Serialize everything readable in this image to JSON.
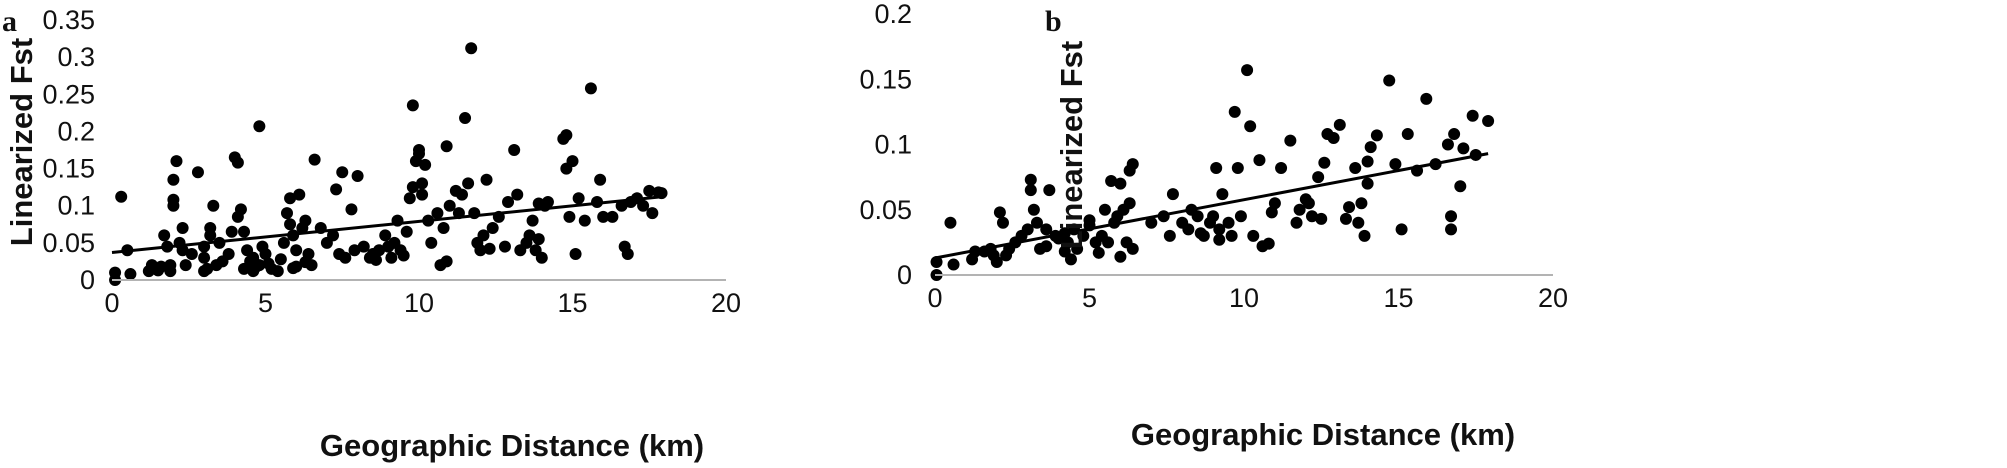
{
  "chart_data": [
    {
      "type": "scatter",
      "panel_label": "a",
      "xlabel": "Geographic Distance (km)",
      "ylabel": "Linearized Fst",
      "xlim": [
        0,
        20
      ],
      "ylim": [
        0,
        0.35
      ],
      "xticks": [
        "0",
        "5",
        "10",
        "15",
        "20"
      ],
      "yticks": [
        "0",
        "0.05",
        "0.1",
        "0.15",
        "0.2",
        "0.25",
        "0.3",
        "0.35"
      ],
      "grid": false,
      "marker_color": "#000000",
      "trendline": {
        "x": [
          0,
          17.9
        ],
        "y": [
          0.037,
          0.112
        ]
      },
      "points": [
        [
          0.1,
          0.0
        ],
        [
          0.1,
          0.01
        ],
        [
          0.3,
          0.112
        ],
        [
          0.5,
          0.04
        ],
        [
          0.6,
          0.008
        ],
        [
          1.2,
          0.012
        ],
        [
          1.3,
          0.02
        ],
        [
          1.6,
          0.018
        ],
        [
          1.7,
          0.06
        ],
        [
          1.8,
          0.045
        ],
        [
          1.9,
          0.012
        ],
        [
          1.9,
          0.02
        ],
        [
          2.0,
          0.1
        ],
        [
          2.0,
          0.108
        ],
        [
          2.0,
          0.135
        ],
        [
          2.1,
          0.16
        ],
        [
          2.2,
          0.05
        ],
        [
          2.3,
          0.04
        ],
        [
          2.3,
          0.07
        ],
        [
          2.4,
          0.02
        ],
        [
          2.6,
          0.035
        ],
        [
          2.8,
          0.145
        ],
        [
          3.0,
          0.03
        ],
        [
          3.0,
          0.045
        ],
        [
          3.1,
          0.015
        ],
        [
          3.2,
          0.06
        ],
        [
          3.2,
          0.07
        ],
        [
          3.3,
          0.1
        ],
        [
          3.4,
          0.02
        ],
        [
          3.5,
          0.05
        ],
        [
          3.6,
          0.025
        ],
        [
          3.8,
          0.035
        ],
        [
          3.9,
          0.065
        ],
        [
          4.0,
          0.165
        ],
        [
          4.1,
          0.158
        ],
        [
          4.1,
          0.085
        ],
        [
          4.2,
          0.095
        ],
        [
          4.3,
          0.065
        ],
        [
          4.3,
          0.015
        ],
        [
          4.4,
          0.04
        ],
        [
          4.5,
          0.025
        ],
        [
          4.6,
          0.03
        ],
        [
          4.7,
          0.018
        ],
        [
          4.8,
          0.207
        ],
        [
          4.8,
          0.02
        ],
        [
          4.9,
          0.045
        ],
        [
          5.0,
          0.035
        ],
        [
          5.1,
          0.022
        ],
        [
          5.2,
          0.015
        ],
        [
          5.4,
          0.012
        ],
        [
          5.5,
          0.028
        ],
        [
          5.6,
          0.05
        ],
        [
          5.7,
          0.09
        ],
        [
          5.8,
          0.11
        ],
        [
          5.8,
          0.075
        ],
        [
          5.9,
          0.06
        ],
        [
          6.0,
          0.04
        ],
        [
          6.0,
          0.018
        ],
        [
          6.1,
          0.115
        ],
        [
          6.2,
          0.07
        ],
        [
          6.3,
          0.08
        ],
        [
          6.4,
          0.035
        ],
        [
          6.5,
          0.02
        ],
        [
          6.6,
          0.162
        ],
        [
          6.8,
          0.07
        ],
        [
          7.0,
          0.05
        ],
        [
          7.2,
          0.06
        ],
        [
          7.3,
          0.122
        ],
        [
          7.4,
          0.035
        ],
        [
          7.5,
          0.145
        ],
        [
          7.6,
          0.03
        ],
        [
          7.8,
          0.095
        ],
        [
          8.0,
          0.14
        ],
        [
          8.2,
          0.045
        ],
        [
          8.4,
          0.03
        ],
        [
          8.5,
          0.035
        ],
        [
          8.7,
          0.04
        ],
        [
          8.9,
          0.06
        ],
        [
          9.0,
          0.045
        ],
        [
          9.1,
          0.03
        ],
        [
          9.2,
          0.05
        ],
        [
          9.3,
          0.08
        ],
        [
          9.4,
          0.04
        ],
        [
          9.6,
          0.065
        ],
        [
          9.7,
          0.11
        ],
        [
          9.8,
          0.125
        ],
        [
          9.8,
          0.235
        ],
        [
          9.9,
          0.16
        ],
        [
          10.0,
          0.17
        ],
        [
          10.0,
          0.175
        ],
        [
          10.1,
          0.13
        ],
        [
          10.1,
          0.115
        ],
        [
          10.2,
          0.155
        ],
        [
          10.3,
          0.08
        ],
        [
          10.4,
          0.05
        ],
        [
          10.6,
          0.09
        ],
        [
          10.7,
          0.02
        ],
        [
          10.8,
          0.07
        ],
        [
          10.9,
          0.18
        ],
        [
          11.0,
          0.1
        ],
        [
          11.2,
          0.12
        ],
        [
          11.3,
          0.09
        ],
        [
          11.4,
          0.115
        ],
        [
          11.5,
          0.218
        ],
        [
          11.6,
          0.13
        ],
        [
          11.7,
          0.312
        ],
        [
          11.8,
          0.09
        ],
        [
          11.9,
          0.05
        ],
        [
          12.0,
          0.04
        ],
        [
          12.1,
          0.06
        ],
        [
          12.2,
          0.135
        ],
        [
          12.4,
          0.07
        ],
        [
          12.6,
          0.085
        ],
        [
          12.8,
          0.045
        ],
        [
          12.9,
          0.105
        ],
        [
          13.1,
          0.175
        ],
        [
          13.2,
          0.115
        ],
        [
          13.3,
          0.04
        ],
        [
          13.5,
          0.05
        ],
        [
          13.6,
          0.06
        ],
        [
          13.7,
          0.08
        ],
        [
          13.8,
          0.04
        ],
        [
          13.9,
          0.103
        ],
        [
          14.0,
          0.03
        ],
        [
          14.1,
          0.1
        ],
        [
          14.2,
          0.105
        ],
        [
          14.7,
          0.19
        ],
        [
          14.8,
          0.195
        ],
        [
          14.8,
          0.15
        ],
        [
          14.9,
          0.085
        ],
        [
          15.0,
          0.16
        ],
        [
          15.1,
          0.035
        ],
        [
          15.2,
          0.11
        ],
        [
          15.4,
          0.08
        ],
        [
          15.6,
          0.258
        ],
        [
          15.9,
          0.135
        ],
        [
          16.0,
          0.085
        ],
        [
          16.3,
          0.085
        ],
        [
          16.6,
          0.1
        ],
        [
          16.7,
          0.045
        ],
        [
          16.8,
          0.035
        ],
        [
          16.9,
          0.105
        ],
        [
          17.1,
          0.11
        ],
        [
          17.3,
          0.1
        ],
        [
          17.5,
          0.12
        ],
        [
          17.6,
          0.09
        ],
        [
          17.8,
          0.118
        ],
        [
          17.9,
          0.117
        ],
        [
          4.6,
          0.012
        ],
        [
          9.5,
          0.033
        ],
        [
          12.3,
          0.042
        ],
        [
          5.9,
          0.016
        ],
        [
          3.0,
          0.012
        ],
        [
          10.9,
          0.025
        ],
        [
          7.9,
          0.04
        ],
        [
          8.6,
          0.027
        ],
        [
          6.3,
          0.024
        ],
        [
          1.5,
          0.013
        ],
        [
          13.9,
          0.055
        ],
        [
          15.8,
          0.105
        ]
      ]
    },
    {
      "type": "scatter",
      "panel_label": "b",
      "xlabel": "Geographic Distance (km)",
      "ylabel": "Linearized Fst",
      "xlim": [
        0,
        20
      ],
      "ylim": [
        0,
        0.2
      ],
      "xticks": [
        "0",
        "5",
        "10",
        "15",
        "20"
      ],
      "yticks": [
        "0",
        "0.05",
        "0.1",
        "0.15",
        "0.2"
      ],
      "grid": false,
      "marker_color": "#000000",
      "trendline": {
        "x": [
          0,
          17.9
        ],
        "y": [
          0.013,
          0.093
        ]
      },
      "points": [
        [
          0.05,
          0.0
        ],
        [
          0.05,
          0.01
        ],
        [
          0.5,
          0.04
        ],
        [
          0.6,
          0.008
        ],
        [
          1.2,
          0.012
        ],
        [
          1.3,
          0.018
        ],
        [
          1.6,
          0.018
        ],
        [
          1.8,
          0.02
        ],
        [
          1.9,
          0.015
        ],
        [
          2.0,
          0.01
        ],
        [
          2.1,
          0.048
        ],
        [
          2.2,
          0.04
        ],
        [
          2.4,
          0.02
        ],
        [
          2.6,
          0.025
        ],
        [
          2.8,
          0.03
        ],
        [
          3.0,
          0.035
        ],
        [
          3.1,
          0.065
        ],
        [
          3.1,
          0.073
        ],
        [
          3.2,
          0.05
        ],
        [
          3.3,
          0.04
        ],
        [
          3.4,
          0.02
        ],
        [
          3.6,
          0.035
        ],
        [
          3.7,
          0.065
        ],
        [
          3.9,
          0.03
        ],
        [
          4.0,
          0.028
        ],
        [
          4.2,
          0.018
        ],
        [
          4.3,
          0.025
        ],
        [
          4.4,
          0.012
        ],
        [
          4.5,
          0.035
        ],
        [
          4.6,
          0.02
        ],
        [
          4.8,
          0.03
        ],
        [
          5.0,
          0.038
        ],
        [
          5.0,
          0.042
        ],
        [
          5.2,
          0.025
        ],
        [
          5.4,
          0.03
        ],
        [
          5.5,
          0.05
        ],
        [
          5.6,
          0.025
        ],
        [
          5.7,
          0.072
        ],
        [
          5.8,
          0.04
        ],
        [
          5.9,
          0.045
        ],
        [
          6.0,
          0.07
        ],
        [
          6.1,
          0.05
        ],
        [
          6.2,
          0.025
        ],
        [
          6.3,
          0.055
        ],
        [
          6.3,
          0.08
        ],
        [
          6.4,
          0.085
        ],
        [
          6.4,
          0.02
        ],
        [
          7.0,
          0.04
        ],
        [
          7.4,
          0.045
        ],
        [
          7.6,
          0.03
        ],
        [
          7.7,
          0.062
        ],
        [
          8.0,
          0.04
        ],
        [
          8.2,
          0.035
        ],
        [
          8.3,
          0.05
        ],
        [
          8.5,
          0.045
        ],
        [
          8.7,
          0.03
        ],
        [
          8.9,
          0.04
        ],
        [
          9.0,
          0.045
        ],
        [
          9.1,
          0.082
        ],
        [
          9.2,
          0.035
        ],
        [
          9.3,
          0.062
        ],
        [
          9.5,
          0.04
        ],
        [
          9.6,
          0.03
        ],
        [
          9.7,
          0.125
        ],
        [
          9.8,
          0.082
        ],
        [
          9.9,
          0.045
        ],
        [
          10.1,
          0.157
        ],
        [
          10.2,
          0.114
        ],
        [
          10.3,
          0.03
        ],
        [
          10.5,
          0.088
        ],
        [
          10.6,
          0.022
        ],
        [
          10.8,
          0.024
        ],
        [
          11.0,
          0.055
        ],
        [
          11.2,
          0.082
        ],
        [
          11.5,
          0.103
        ],
        [
          11.7,
          0.04
        ],
        [
          11.8,
          0.05
        ],
        [
          12.0,
          0.058
        ],
        [
          12.1,
          0.055
        ],
        [
          12.2,
          0.045
        ],
        [
          12.4,
          0.075
        ],
        [
          12.6,
          0.086
        ],
        [
          12.7,
          0.108
        ],
        [
          12.9,
          0.105
        ],
        [
          13.1,
          0.115
        ],
        [
          13.3,
          0.043
        ],
        [
          13.4,
          0.052
        ],
        [
          13.6,
          0.082
        ],
        [
          13.7,
          0.04
        ],
        [
          13.8,
          0.055
        ],
        [
          13.9,
          0.03
        ],
        [
          14.0,
          0.087
        ],
        [
          14.1,
          0.098
        ],
        [
          14.3,
          0.107
        ],
        [
          14.7,
          0.149
        ],
        [
          14.9,
          0.085
        ],
        [
          15.1,
          0.035
        ],
        [
          15.3,
          0.108
        ],
        [
          15.6,
          0.08
        ],
        [
          15.9,
          0.135
        ],
        [
          16.2,
          0.085
        ],
        [
          16.6,
          0.1
        ],
        [
          16.7,
          0.045
        ],
        [
          16.7,
          0.035
        ],
        [
          16.8,
          0.108
        ],
        [
          17.0,
          0.068
        ],
        [
          17.1,
          0.097
        ],
        [
          17.4,
          0.122
        ],
        [
          17.5,
          0.092
        ],
        [
          17.9,
          0.118
        ],
        [
          4.2,
          0.032
        ],
        [
          6.0,
          0.014
        ],
        [
          9.2,
          0.027
        ],
        [
          12.5,
          0.043
        ],
        [
          3.6,
          0.022
        ],
        [
          10.9,
          0.048
        ],
        [
          14.0,
          0.07
        ],
        [
          5.3,
          0.017
        ],
        [
          2.3,
          0.015
        ],
        [
          8.6,
          0.032
        ]
      ]
    }
  ]
}
